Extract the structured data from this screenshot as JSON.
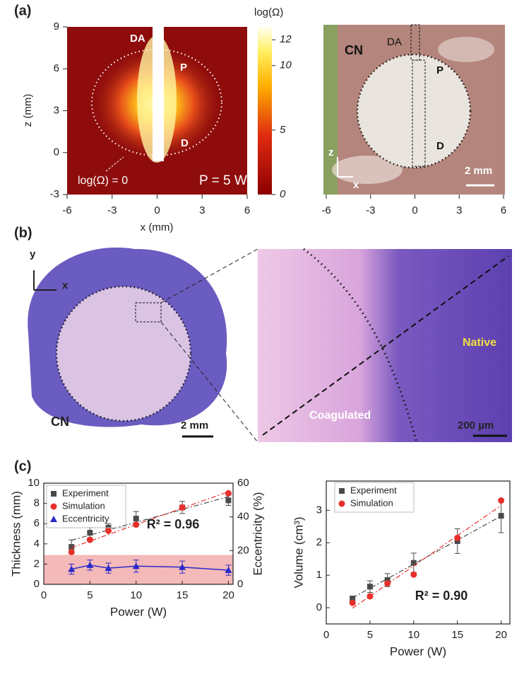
{
  "panel_labels": [
    "(a)",
    "(b)",
    "(c)"
  ],
  "simulation_map": {
    "xlabel": "x (mm)",
    "ylabel": "z (mm)",
    "xlim": [
      -6,
      6
    ],
    "xticks": [
      -6,
      -3,
      0,
      3,
      6
    ],
    "ylim": [
      -3,
      9
    ],
    "yticks": [
      -3,
      0,
      3,
      6,
      9
    ],
    "colorbar_title": "log(Ω)",
    "clim": [
      0,
      13
    ],
    "cticks": [
      0,
      5,
      10,
      12
    ],
    "labels": {
      "electrode": "DA",
      "proximal": "P",
      "distal": "D",
      "contour": "log(Ω) = 0",
      "power": "P = 5 W"
    }
  },
  "photo": {
    "xlim": [
      -6,
      6
    ],
    "xticks": [
      -6,
      -3,
      0,
      3,
      6
    ],
    "labels": {
      "region": "CN",
      "electrode": "DA",
      "proximal": "P",
      "distal": "D",
      "z_axis": "z",
      "x_axis": "x"
    },
    "scale_bar": "2 mm"
  },
  "histology": {
    "labels": {
      "region": "CN",
      "y_axis": "y",
      "x_axis": "x"
    },
    "scale_bar": "2 mm"
  },
  "zoom": {
    "native": "Native",
    "coagulated": "Coagulated",
    "scale_bar": "200 µm"
  },
  "chart_data": [
    {
      "type": "line",
      "xlabel": "Power (W)",
      "ylabel": "Thickness (mm)",
      "y2label": "Eccentricity (%)",
      "x": [
        3,
        5,
        7,
        10,
        15,
        20
      ],
      "xlim": [
        0,
        20.5
      ],
      "xticks": [
        0,
        5,
        10,
        15,
        20
      ],
      "ylim": [
        0,
        10
      ],
      "yticks": [
        0,
        2,
        4,
        6,
        8,
        10
      ],
      "y2lim": [
        0,
        60
      ],
      "y2ticks": [
        0,
        20,
        40,
        60
      ],
      "band": {
        "ylim": [
          0,
          2.9
        ],
        "color": "#f4b9b9"
      },
      "annotation": "R² = 0.96",
      "series": [
        {
          "name": "Experiment",
          "color": "#4a4a4a",
          "marker": "square",
          "fit": true,
          "values": [
            3.7,
            5.1,
            5.6,
            6.5,
            7.6,
            8.3
          ],
          "errors": [
            0.7,
            0.5,
            0.4,
            0.7,
            0.6,
            0.5
          ]
        },
        {
          "name": "Simulation",
          "color": "#e8302a",
          "marker": "circle",
          "fit": true,
          "values": [
            3.2,
            4.4,
            5.3,
            5.9,
            7.6,
            9.0
          ]
        },
        {
          "name": "Eccentricity",
          "color": "#2a2ac8",
          "marker": "triangle",
          "axis": "y2",
          "connect": true,
          "values": [
            9,
            11.4,
            9.6,
            10.8,
            10.2,
            8.4
          ],
          "errors": [
            3,
            3,
            3,
            3.6,
            3.6,
            3
          ]
        }
      ]
    },
    {
      "type": "line",
      "xlabel": "Power (W)",
      "ylabel": "Volume (cm³)",
      "x": [
        3,
        5,
        7,
        10,
        15,
        20
      ],
      "xlim": [
        0,
        21
      ],
      "xticks": [
        0,
        5,
        10,
        15,
        20
      ],
      "ylim": [
        -0.5,
        3.9
      ],
      "yticks": [
        0,
        1,
        2,
        3
      ],
      "annotation": "R² = 0.90",
      "series": [
        {
          "name": "Experiment",
          "color": "#4a4a4a",
          "marker": "square",
          "fit": true,
          "values": [
            0.28,
            0.65,
            0.85,
            1.38,
            2.05,
            2.83
          ],
          "errors": [
            0.08,
            0.18,
            0.2,
            0.3,
            0.38,
            0.52
          ]
        },
        {
          "name": "Simulation",
          "color": "#e8302a",
          "marker": "circle",
          "fit": true,
          "values": [
            0.15,
            0.35,
            0.75,
            1.02,
            2.15,
            3.3
          ]
        }
      ]
    }
  ]
}
